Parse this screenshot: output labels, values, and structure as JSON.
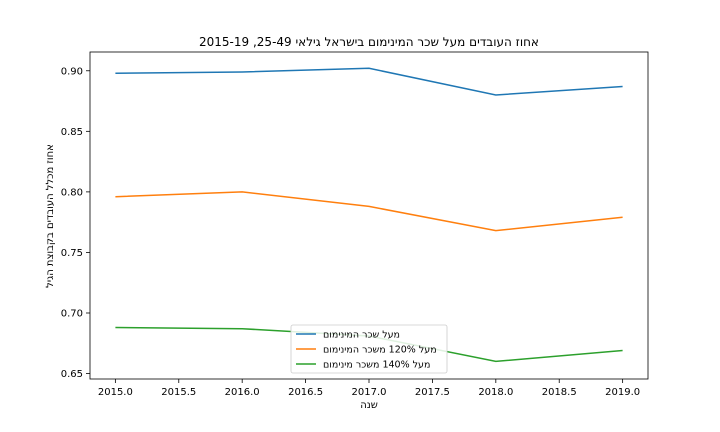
{
  "chart_data": {
    "type": "line",
    "title": "אחוז העובדים מעל שכר המינימום בישראל גילאי 25-49, 2015-19",
    "xlabel": "שנה",
    "ylabel": "אחוז מכלל העובדים בקבוצת הגיל",
    "x": [
      2015,
      2016,
      2017,
      2018,
      2019
    ],
    "xticks": [
      "2015.0",
      "2015.5",
      "2016.0",
      "2016.5",
      "2017.0",
      "2017.5",
      "2018.0",
      "2018.5",
      "2019.0"
    ],
    "xtick_values": [
      2015,
      2015.5,
      2016,
      2016.5,
      2017,
      2017.5,
      2018,
      2018.5,
      2019
    ],
    "yticks": [
      "0.65",
      "0.70",
      "0.75",
      "0.80",
      "0.85",
      "0.90"
    ],
    "ytick_values": [
      0.65,
      0.7,
      0.75,
      0.8,
      0.85,
      0.9
    ],
    "xlim": [
      2014.8,
      2019.2
    ],
    "ylim": [
      0.6455,
      0.9155
    ],
    "grid": false,
    "legend_position": "bottom-center",
    "series": [
      {
        "name": "מעל שכר המינימום",
        "color": "#1f77b4",
        "values": [
          0.898,
          0.899,
          0.902,
          0.88,
          0.887
        ]
      },
      {
        "name": "מעל 120% משכר המינימום",
        "color": "#ff7f0e",
        "values": [
          0.796,
          0.8,
          0.788,
          0.768,
          0.779
        ]
      },
      {
        "name": "מעל 140% משכר מינימום",
        "color": "#2ca02c",
        "values": [
          0.688,
          0.687,
          0.681,
          0.66,
          0.669
        ]
      }
    ]
  }
}
